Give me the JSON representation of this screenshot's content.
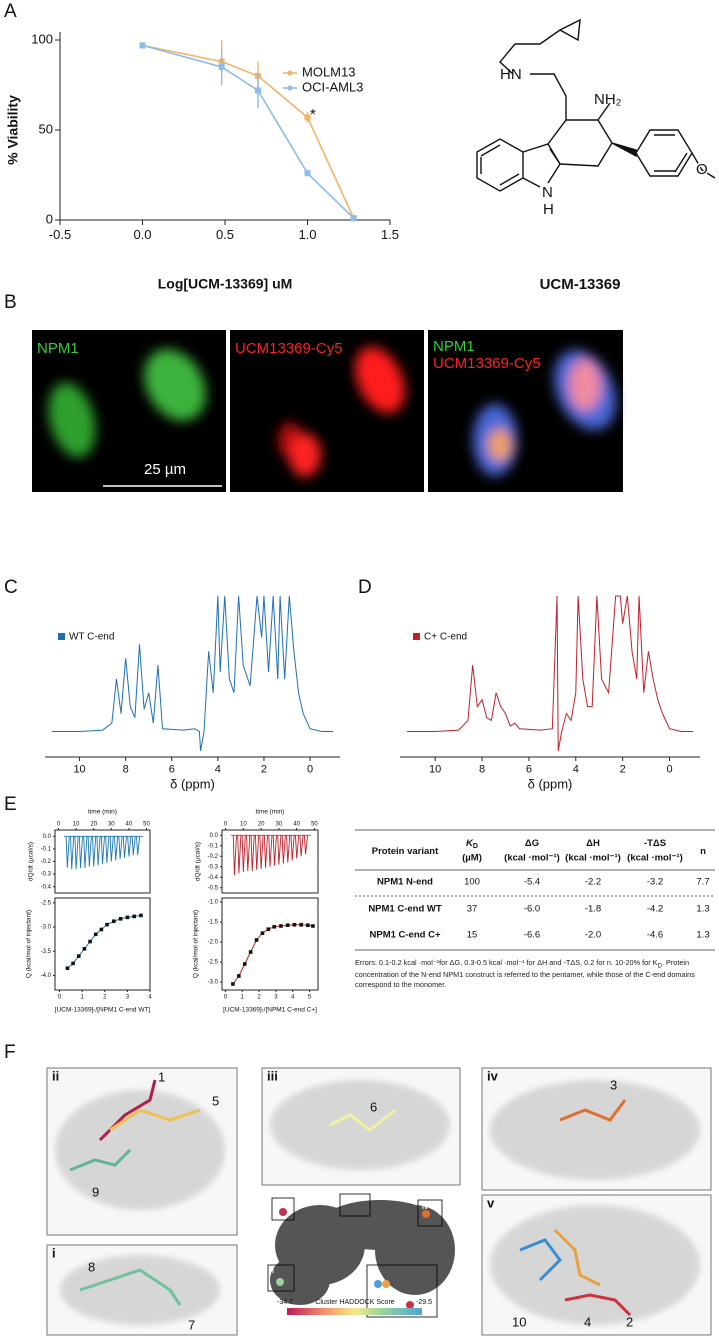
{
  "panel_labels": [
    "A",
    "B",
    "C",
    "D",
    "E",
    "F"
  ],
  "chart_data": [
    {
      "type": "line",
      "x_label": "Log[UCM-13369] uM",
      "y_label": "% Viability",
      "xlim": [
        -0.5,
        1.5
      ],
      "xticks": [
        -0.5,
        {
          "value": 0,
          "label": "0.0"
        },
        0.5,
        {
          "value": 1,
          "label": "1.0"
        },
        1.5
      ],
      "ylim": [
        0,
        105
      ],
      "yticks": [
        0,
        50,
        100
      ],
      "series": [
        {
          "name": "MOLM13",
          "color": "#f5b366",
          "x": [
            0,
            0.48,
            0.7,
            1.0,
            1.28
          ],
          "values": [
            97,
            88,
            80,
            57,
            1
          ],
          "errors": [
            1,
            12,
            8,
            3,
            0
          ]
        },
        {
          "name": "OCI-AML3",
          "color": "#8dbbee",
          "x": [
            0,
            0.48,
            0.7,
            1.0,
            1.28
          ],
          "values": [
            97,
            85,
            72,
            26,
            1
          ],
          "errors": [
            1,
            10,
            10,
            1,
            0
          ]
        }
      ],
      "annotations": [
        "*"
      ]
    },
    {
      "type": "spectrum",
      "x_label": "δ (ppm)",
      "xlim": [
        11.5,
        -1.3
      ],
      "xticks": [
        10,
        8,
        6,
        4,
        2,
        0
      ],
      "ylim": [
        -15,
        100
      ],
      "series": [
        {
          "name": "WT C-end",
          "color": "#1f6fb4",
          "x": [
            11.2,
            10,
            9,
            8.6,
            8.4,
            8.2,
            8.0,
            7.8,
            7.6,
            7.4,
            7.2,
            7.0,
            6.8,
            6.6,
            6.4,
            5.5,
            5.0,
            4.8,
            4.75,
            4.6,
            4.4,
            4.2,
            4.0,
            3.9,
            3.7,
            3.5,
            3.3,
            3.1,
            2.9,
            2.6,
            2.3,
            2.1,
            2.0,
            1.8,
            1.6,
            1.4,
            1.3,
            1.1,
            0.9,
            0.7,
            0.5,
            0.3,
            0,
            -0.5,
            -1
          ],
          "values": [
            2,
            2,
            3,
            8,
            40,
            15,
            55,
            20,
            12,
            65,
            18,
            30,
            8,
            50,
            4,
            3,
            4,
            2,
            -12,
            2,
            60,
            30,
            100,
            45,
            100,
            40,
            30,
            100,
            50,
            35,
            100,
            70,
            100,
            45,
            100,
            40,
            100,
            40,
            100,
            60,
            30,
            15,
            4,
            2,
            2
          ]
        }
      ]
    },
    {
      "type": "spectrum",
      "x_label": "δ (ppm)",
      "xlim": [
        11.5,
        -1.3
      ],
      "xticks": [
        10,
        8,
        6,
        4,
        2,
        0
      ],
      "ylim": [
        -15,
        100
      ],
      "series": [
        {
          "name": "C+ C-end",
          "color": "#c0202a",
          "x": [
            11.2,
            10,
            9,
            8.6,
            8.4,
            8.2,
            8.0,
            7.8,
            7.6,
            7.4,
            7.2,
            7.0,
            6.8,
            6.6,
            6.4,
            5.5,
            5.0,
            4.8,
            4.75,
            4.6,
            4.4,
            4.2,
            4.0,
            3.9,
            3.7,
            3.5,
            3.3,
            3.1,
            2.9,
            2.6,
            2.3,
            2.1,
            2.0,
            1.8,
            1.6,
            1.4,
            1.3,
            1.1,
            0.9,
            0.7,
            0.5,
            0.3,
            0,
            -0.5,
            -1
          ],
          "values": [
            2,
            2,
            3,
            10,
            50,
            20,
            25,
            12,
            10,
            30,
            20,
            15,
            6,
            8,
            4,
            3,
            4,
            100,
            -12,
            2,
            15,
            10,
            30,
            100,
            40,
            20,
            20,
            100,
            40,
            30,
            100,
            100,
            80,
            100,
            60,
            40,
            100,
            30,
            60,
            40,
            25,
            15,
            4,
            2,
            2
          ]
        }
      ]
    },
    {
      "type": "thermogram",
      "x_label": "time (min)",
      "y_label": "dQ/dt (µcal/s)",
      "xlim": [
        -2,
        52
      ],
      "xticks": [
        0,
        10,
        20,
        30,
        40,
        50
      ],
      "ylim": [
        -0.45,
        0.05
      ],
      "yticks": [
        {
          "value": 0,
          "label": "0.0"
        },
        -0.1,
        -0.2,
        -0.3,
        -0.4
      ],
      "color": "#1f77b4",
      "x": [
        5,
        7.5,
        10,
        12.5,
        15,
        17.5,
        20,
        22.5,
        25,
        27.5,
        30,
        32.5,
        35,
        37.5,
        40,
        42.5,
        45
      ],
      "values": [
        -0.25,
        -0.26,
        -0.26,
        -0.25,
        -0.25,
        -0.24,
        -0.24,
        -0.23,
        -0.22,
        -0.21,
        -0.2,
        -0.19,
        -0.18,
        -0.17,
        -0.16,
        -0.15,
        -0.15
      ]
    },
    {
      "type": "scatter",
      "x_label": "[UCM-13369]ₜ/[NPM1 C-end WT]",
      "y_label": "Q (kcal/mol of injectant)",
      "xlim": [
        -0.2,
        4
      ],
      "xticks": [
        0,
        1,
        2,
        3,
        4
      ],
      "ylim": [
        -4.3,
        -2.4
      ],
      "yticks": [
        -2.5,
        {
          "value": -3,
          "label": "-3.0"
        },
        -3.5,
        {
          "value": -4,
          "label": "-4.0"
        }
      ],
      "color": "#1f77b4",
      "x": [
        0.35,
        0.6,
        0.85,
        1.1,
        1.35,
        1.6,
        1.85,
        2.1,
        2.4,
        2.7,
        3.0,
        3.3,
        3.6
      ],
      "values": [
        -3.85,
        -3.75,
        -3.6,
        -3.45,
        -3.3,
        -3.15,
        -3.05,
        -2.95,
        -2.88,
        -2.83,
        -2.8,
        -2.78,
        -2.76
      ]
    },
    {
      "type": "thermogram",
      "x_label": "time (min)",
      "y_label": "dQ/dt (µcal/s)",
      "xlim": [
        -2,
        52
      ],
      "xticks": [
        0,
        10,
        20,
        30,
        40,
        50
      ],
      "ylim": [
        -0.55,
        0.05
      ],
      "yticks": [
        {
          "value": 0,
          "label": "0.0"
        },
        -0.1,
        -0.2,
        -0.3,
        -0.4,
        -0.5
      ],
      "color": "#c0202a",
      "x": [
        5,
        7.5,
        10,
        12.5,
        15,
        17.5,
        20,
        22.5,
        25,
        27.5,
        30,
        32.5,
        35,
        37.5,
        40,
        42.5,
        45
      ],
      "values": [
        -0.38,
        -0.36,
        -0.35,
        -0.34,
        -0.34,
        -0.33,
        -0.32,
        -0.31,
        -0.3,
        -0.29,
        -0.28,
        -0.27,
        -0.26,
        -0.24,
        -0.22,
        -0.2,
        -0.18
      ]
    },
    {
      "type": "scatter",
      "x_label": "[UCM-13369]ₜ/[NPM1 C-end C+]",
      "y_label": "Q (kcal/mol of injectant)",
      "xlim": [
        -0.2,
        5.5
      ],
      "xticks": [
        0,
        1,
        2,
        3,
        4,
        5
      ],
      "ylim": [
        -3.2,
        -0.9
      ],
      "yticks": [
        {
          "value": -1,
          "label": "-1.0"
        },
        -1.5,
        {
          "value": -2,
          "label": "-2.0"
        },
        -2.5,
        {
          "value": -3,
          "label": "-3.0"
        }
      ],
      "color": "#c0202a",
      "x": [
        0.45,
        0.8,
        1.15,
        1.5,
        1.85,
        2.2,
        2.55,
        2.9,
        3.3,
        3.7,
        4.1,
        4.5,
        4.9,
        5.2
      ],
      "values": [
        -3.05,
        -2.85,
        -2.55,
        -2.25,
        -1.95,
        -1.78,
        -1.68,
        -1.62,
        -1.6,
        -1.58,
        -1.57,
        -1.57,
        -1.58,
        -1.6
      ]
    }
  ],
  "structure": {
    "name": "UCM-13369",
    "atoms": [
      "HN",
      "NH₂",
      "N",
      "H",
      "O"
    ]
  },
  "microscopy": {
    "panel1": [
      "NPM1"
    ],
    "panel2": [
      "UCM13369-Cy5"
    ],
    "panel3": [
      "NPM1",
      "UCM13369-Cy5"
    ],
    "scale_bar": "25 µm"
  },
  "table": {
    "headers": [
      {
        "top": "Protein variant"
      },
      {
        "top": "K",
        "sub": "D",
        "unit": "(µM)"
      },
      {
        "top": "ΔG",
        "unit": "(kcal ·mol⁻¹)"
      },
      {
        "top": "ΔH",
        "unit": "(kcal ·mol⁻¹)"
      },
      {
        "top": "-TΔS",
        "unit": "(kcal ·mol⁻¹)"
      },
      {
        "top": "n"
      }
    ],
    "rows": [
      [
        "NPM1 N-end",
        "100",
        "-5.4",
        "-2.2",
        "-3.2",
        "7.7"
      ],
      [
        "NPM1 C-end WT",
        "37",
        "-6.0",
        "-1.8",
        "-4.2",
        "1.3"
      ],
      [
        "NPM1 C-end C+",
        "15",
        "-6.6",
        "-2.0",
        "-4.6",
        "1.3"
      ]
    ],
    "footnote": [
      "Errors: 0.1-0.2 kcal ·mol⁻¹for ΔG, 0.3-0.5 kcal ·mol⁻¹ for ΔH and -TΔS, 0.2 for n. 10-20% for K",
      "D",
      ". Protein concentration of the N-end NPM1 construct is referred to the pentamer, while those of the C-end domains correspond to the monomer."
    ]
  },
  "docking": {
    "boxes": [
      "ii",
      "i",
      "iii",
      "iv",
      "v"
    ],
    "pose_labels": [
      "1",
      "5",
      "9",
      "8",
      "7",
      "6",
      "3",
      "10",
      "4",
      "2"
    ],
    "overview_labels": [
      "ii",
      "iii",
      "iv",
      "i",
      "v"
    ],
    "colorbar": {
      "min": -34.7,
      "max": -29.5,
      "label": "Cluster HADDOCK Score"
    }
  }
}
